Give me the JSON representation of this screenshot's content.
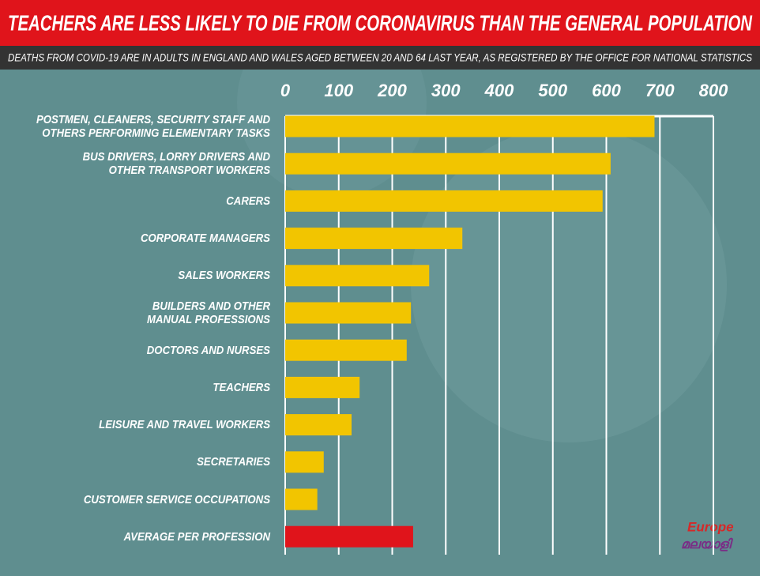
{
  "chart_data": {
    "type": "barh",
    "title": "TEACHERS ARE LESS LIKELY TO DIE FROM CORONAVIRUS THAN THE GENERAL POPULATION",
    "subtitle": "DEATHS FROM COVID-19 ARE IN ADULTS IN ENGLAND AND WALES AGED BETWEEN  20 AND 64 LAST YEAR, AS REGISTERED BY THE OFFICE FOR NATIONAL STATISTICS",
    "categories": [
      "POSTMEN, CLEANERS, SECURITY STAFF AND\nOTHERS PERFORMING ELEMENTARY TASKS",
      "BUS DRIVERS, LORRY DRIVERS AND\nOTHER TRANSPORT WORKERS",
      "CARERS",
      "CORPORATE MANAGERS",
      "SALES WORKERS",
      "BUILDERS AND OTHER\nMANUAL PROFESSIONS",
      "DOCTORS AND NURSES",
      "TEACHERS",
      "LEISURE AND TRAVEL WORKERS",
      "SECRETARIES",
      "CUSTOMER SERVICE OCCUPATIONS",
      "AVERAGE PER PROFESSION"
    ],
    "values": [
      690,
      608,
      593,
      331,
      269,
      235,
      227,
      139,
      124,
      72,
      60,
      239
    ],
    "colors": [
      "#f2c500",
      "#f2c500",
      "#f2c500",
      "#f2c500",
      "#f2c500",
      "#f2c500",
      "#f2c500",
      "#f2c500",
      "#f2c500",
      "#f2c500",
      "#f2c500",
      "#e0141b"
    ],
    "xlim": [
      0,
      800
    ],
    "xticks": [
      0,
      100,
      200,
      300,
      400,
      500,
      600,
      700,
      800
    ],
    "grid": true,
    "logo": [
      "Europe",
      "മലയാളി"
    ]
  }
}
